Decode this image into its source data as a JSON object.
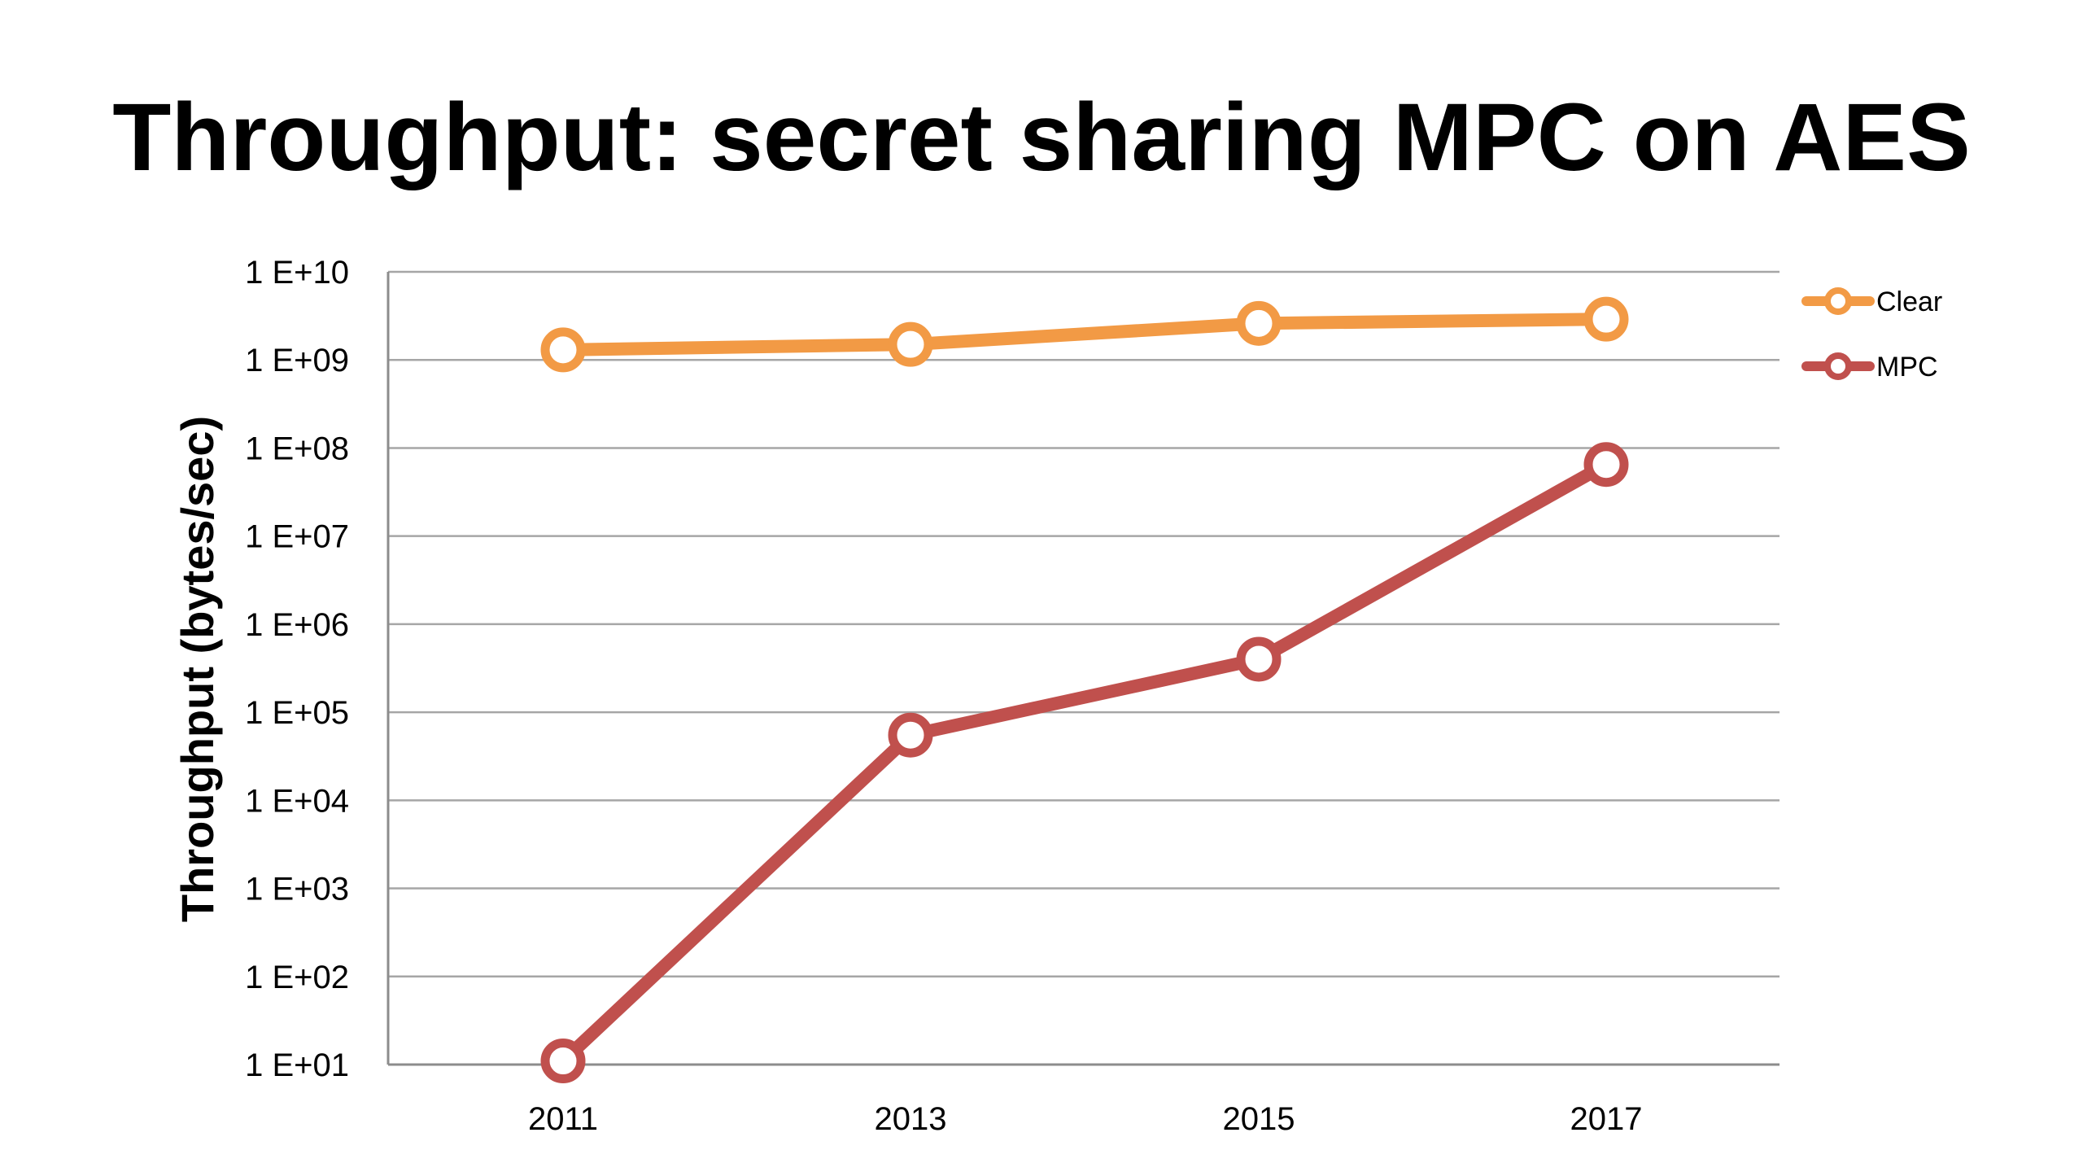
{
  "slide": {
    "title": "Throughput: secret sharing MPC on AES"
  },
  "chart_data": {
    "type": "line",
    "title": "",
    "xlabel": "",
    "ylabel": "Throughput (bytes/sec)",
    "yscale": "log",
    "ylim": [
      10,
      10000000000
    ],
    "categories": [
      "2011",
      "2013",
      "2015",
      "2017"
    ],
    "y_tick_labels": [
      "1 E+01",
      "1 E+02",
      "1 E+03",
      "1 E+04",
      "1 E+05",
      "1 E+06",
      "1 E+07",
      "1 E+08",
      "1 E+09",
      "1 E+10"
    ],
    "grid": true,
    "legend_position": "right",
    "series": [
      {
        "name": "Clear",
        "color": "#F29A45",
        "values": [
          1300000000,
          1500000000,
          2600000000,
          2900000000
        ]
      },
      {
        "name": "MPC",
        "color": "#C0504D",
        "values": [
          11,
          55000,
          400000,
          65000000
        ]
      }
    ]
  }
}
